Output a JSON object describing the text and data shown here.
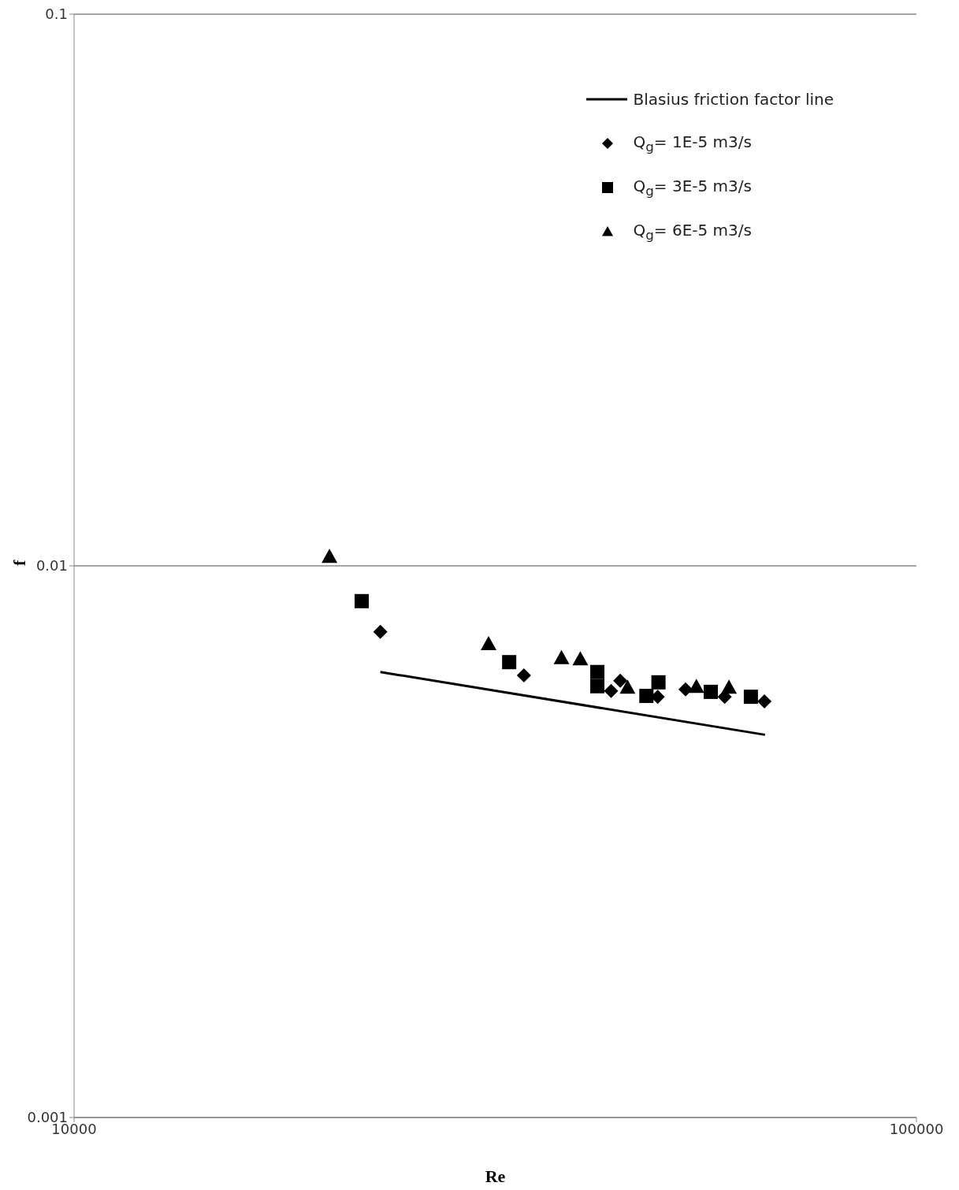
{
  "chart_data": {
    "type": "scatter",
    "xlabel": "Re",
    "ylabel": "f",
    "log": "xy",
    "xlim": [
      10000,
      100000
    ],
    "xticks": [
      10000,
      100000
    ],
    "ylim": [
      0.001,
      0.1
    ],
    "yticks": [
      0.001,
      0.01,
      0.1
    ],
    "grid": "y",
    "legend": "top right",
    "series": [
      {
        "name": "Blasius friction factor line",
        "type": "line",
        "color": "#000000",
        "marker": "none",
        "line_style": "solid",
        "x": [
          23100,
          66100
        ],
        "values": [
          0.00642,
          0.00494
        ]
      },
      {
        "name": "Q$_{g}$= 1E-5 m3/s",
        "color": "#000000",
        "marker": "diamond",
        "x": [
          23100,
          34200,
          43400,
          44500,
          49300,
          53200,
          59200,
          66000
        ],
        "values": [
          0.00759,
          0.00633,
          0.00593,
          0.00619,
          0.00579,
          0.00597,
          0.00579,
          0.00568
        ]
      },
      {
        "name": "Q$_{g}$= 3E-5 m3/s",
        "color": "#000000",
        "marker": "square",
        "x": [
          21950,
          32850,
          41800,
          41800,
          47800,
          49400,
          57000,
          63600
        ],
        "values": [
          0.00863,
          0.00669,
          0.00642,
          0.00605,
          0.00581,
          0.00615,
          0.00591,
          0.00579
        ]
      },
      {
        "name": "Q$_{g}$= 6E-5 m3/s",
        "color": "#000000",
        "marker": "triangle",
        "x": [
          20100,
          31050,
          37900,
          39900,
          45400,
          54800,
          59900
        ],
        "values": [
          0.01039,
          0.00722,
          0.00681,
          0.00678,
          0.00602,
          0.00604,
          0.00602
        ]
      }
    ]
  }
}
